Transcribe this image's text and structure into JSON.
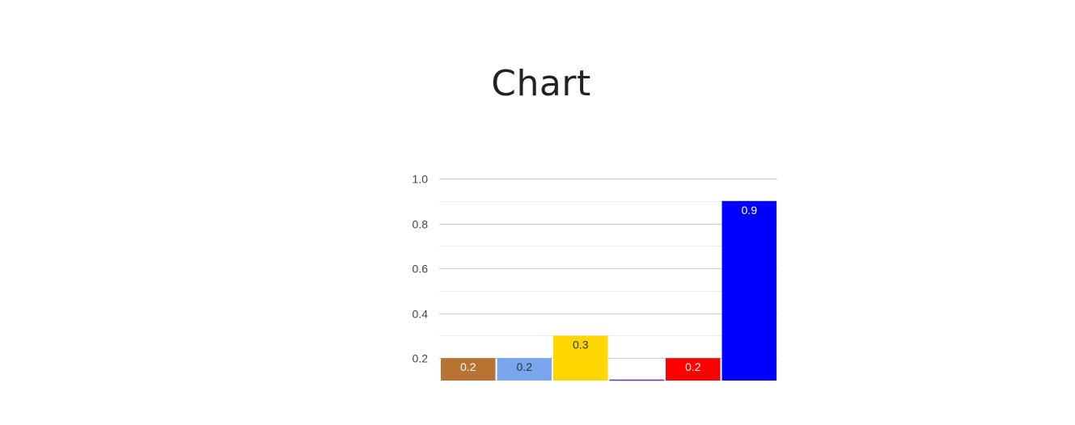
{
  "title": "Chart",
  "chart_data": {
    "type": "bar",
    "title": "Chart",
    "categories": [
      "",
      "",
      "",
      "",
      "",
      ""
    ],
    "values": [
      0.2,
      0.2,
      0.3,
      0.1,
      0.2,
      0.9
    ],
    "data_labels": [
      "0.2",
      "0.2",
      "0.3",
      "",
      "0.2",
      "0.9"
    ],
    "colors": [
      "#b87333",
      "#7aa6f0",
      "#ffd700",
      "#ffffff",
      "#ff0000",
      "#0000ff"
    ],
    "label_colors": [
      "#ffffff",
      "#333333",
      "#333333",
      "#333333",
      "#ffffff",
      "#ffffff"
    ],
    "ylim": [
      0.1,
      1.0
    ],
    "yticks": [
      0.2,
      0.4,
      0.6,
      0.8,
      1.0
    ],
    "ytick_labels": [
      "0.2",
      "0.4",
      "0.6",
      "0.8",
      "1.0"
    ],
    "xlabel": "",
    "ylabel": "",
    "grid": true,
    "legend": "none"
  }
}
